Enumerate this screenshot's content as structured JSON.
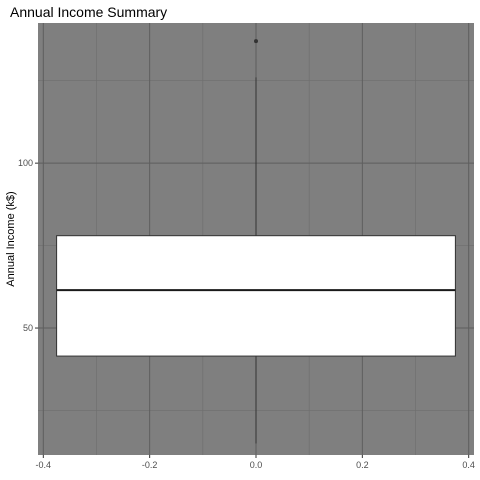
{
  "chart_data": {
    "type": "boxplot",
    "title": "Annual Income Summary",
    "xlabel": "",
    "ylabel": "Annual Income (k$)",
    "xlim": [
      -0.41,
      0.41
    ],
    "ylim": [
      11.5,
      142.5
    ],
    "x_ticks": [
      -0.4,
      -0.2,
      0.0,
      0.2,
      0.4
    ],
    "x_tick_labels": [
      "-0.4",
      "-0.2",
      "0.0",
      "0.2",
      "0.4"
    ],
    "y_ticks": [
      50,
      100
    ],
    "y_tick_labels": [
      "50",
      "100"
    ],
    "y_minor_ticks": [
      25,
      75,
      125
    ],
    "x_minor_ticks": [
      -0.3,
      -0.1,
      0.1,
      0.3
    ],
    "grid": true,
    "legend": "none",
    "box": {
      "x_center": 0.0,
      "x_range": [
        -0.375,
        0.375
      ],
      "min": 15,
      "q1": 41.5,
      "median": 61.5,
      "q3": 78,
      "max": 126,
      "outliers": [
        137
      ]
    },
    "colors": {
      "panel_background": "#7f7f7f",
      "grid_major": "#5e5e5e",
      "grid_minor": "#6e6e6e",
      "box_fill": "#ffffff",
      "box_line": "#333333",
      "tick_text": "#4d4d4d"
    }
  }
}
